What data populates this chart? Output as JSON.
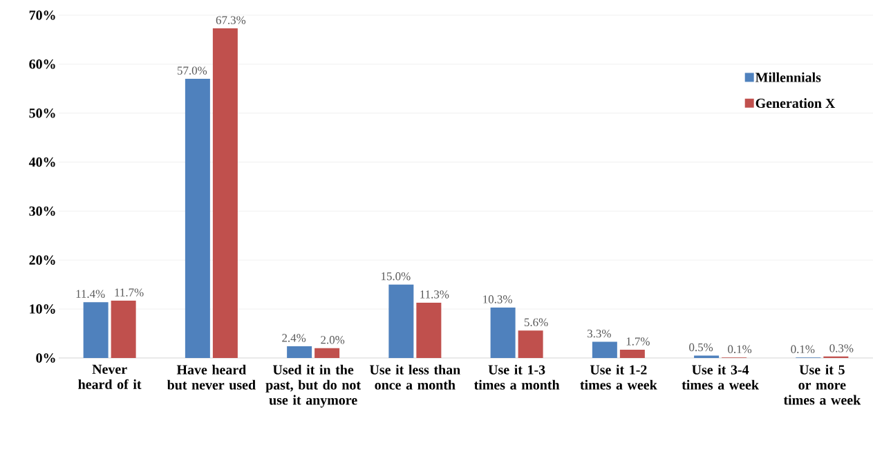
{
  "chart_data": {
    "type": "bar",
    "categories": [
      "Never heard of it",
      "Have heard but never used",
      "Used it in the past, but do not use it anymore",
      "Use it less than once a month",
      "Use it 1-3 times a month",
      "Use it 1-2 times a week",
      "Use it 3-4 times a week",
      "Use it 5 or more times a week"
    ],
    "series": [
      {
        "name": "Millennials",
        "color": "#4f81bd",
        "values": [
          11.4,
          57.0,
          2.4,
          15.0,
          10.3,
          3.3,
          0.5,
          0.1
        ],
        "value_labels": [
          "11.4%",
          "57.0%",
          "2.4%",
          "15.0%",
          "10.3%",
          "3.3%",
          "0.5%",
          "0.1%"
        ]
      },
      {
        "name": "Generation X",
        "color": "#c0504d",
        "values": [
          11.7,
          67.3,
          2.0,
          11.3,
          5.6,
          1.7,
          0.1,
          0.3
        ],
        "value_labels": [
          "11.7%",
          "67.3%",
          "2.0%",
          "11.3%",
          "5.6%",
          "1.7%",
          "0.1%",
          "0.3%"
        ]
      }
    ],
    "ylim": [
      0,
      70
    ],
    "yticks": [
      {
        "value": 0,
        "label": "0%"
      },
      {
        "value": 10,
        "label": "10%"
      },
      {
        "value": 20,
        "label": "20%"
      },
      {
        "value": 30,
        "label": "30%"
      },
      {
        "value": 40,
        "label": "40%"
      },
      {
        "value": 50,
        "label": "50%"
      },
      {
        "value": 60,
        "label": "60%"
      },
      {
        "value": 70,
        "label": "70%"
      }
    ],
    "grid": "y",
    "legend": "right"
  }
}
